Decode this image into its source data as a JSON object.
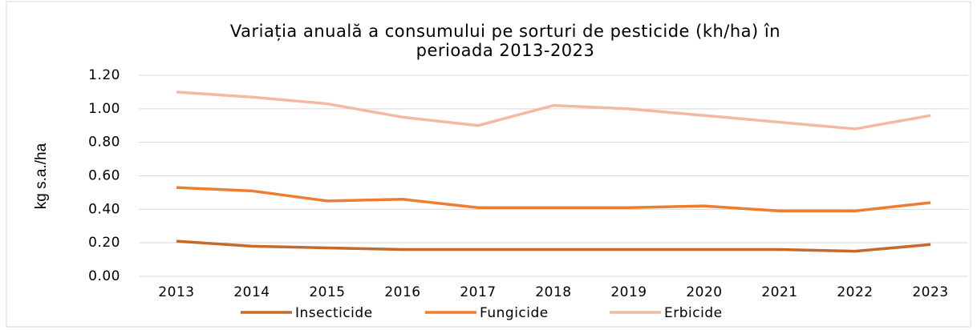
{
  "chart_data": {
    "type": "line",
    "title": [
      "Variația anuală a consumului pe sorturi de pesticide (kh/ha) în",
      "perioada 2013-2023"
    ],
    "ylabel": "kg s.a./ha",
    "categories": [
      "2013",
      "2014",
      "2015",
      "2016",
      "2017",
      "2018",
      "2019",
      "2020",
      "2021",
      "2022",
      "2023"
    ],
    "series": [
      {
        "name": "Insecticide",
        "color": "#c46a2c",
        "values": [
          0.21,
          0.18,
          0.17,
          0.16,
          0.16,
          0.16,
          0.16,
          0.16,
          0.16,
          0.15,
          0.19
        ]
      },
      {
        "name": "Fungicide",
        "color": "#ed7d31",
        "values": [
          0.53,
          0.51,
          0.45,
          0.46,
          0.41,
          0.41,
          0.41,
          0.42,
          0.39,
          0.39,
          0.44
        ]
      },
      {
        "name": "Erbicide",
        "color": "#f4b9a2",
        "values": [
          1.1,
          1.07,
          1.03,
          0.95,
          0.9,
          1.02,
          1.0,
          0.96,
          0.92,
          0.88,
          0.96
        ]
      }
    ],
    "ylim": [
      0,
      1.2
    ],
    "yticks": [
      {
        "value": 0,
        "label": "0.00"
      },
      {
        "value": 0.2,
        "label": "0.20"
      },
      {
        "value": 0.4,
        "label": "0.40"
      },
      {
        "value": 0.6,
        "label": "0.60"
      },
      {
        "value": 0.8,
        "label": "0.80"
      },
      {
        "value": 1,
        "label": "1.00"
      },
      {
        "value": 1.2,
        "label": "1.20"
      }
    ],
    "grid": true,
    "legend": "bottom"
  }
}
